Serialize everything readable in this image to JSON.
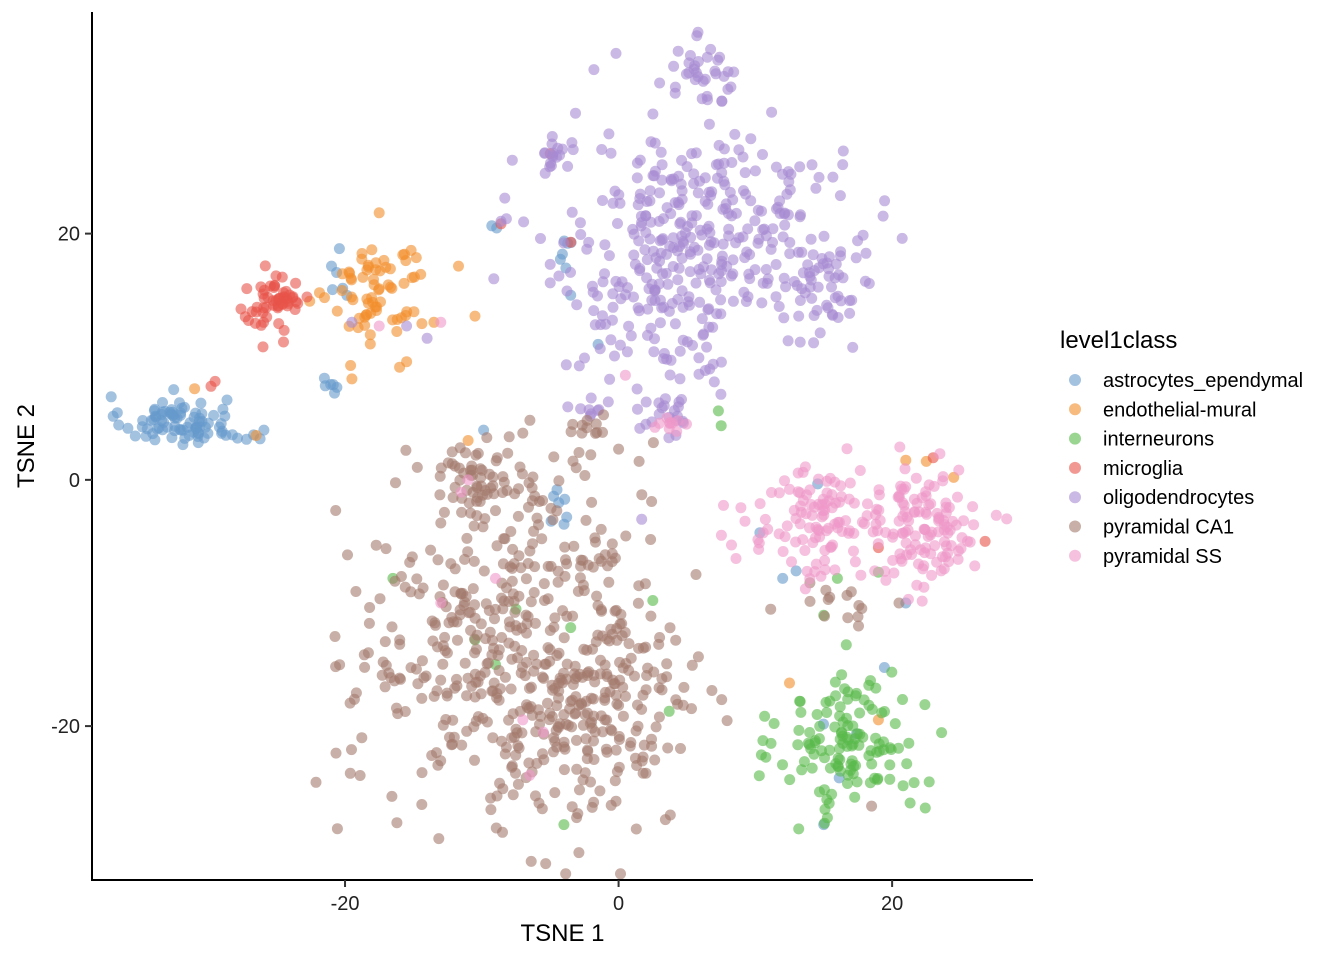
{
  "chart_data": {
    "type": "scatter",
    "xlabel": "TSNE 1",
    "ylabel": "TSNE 2",
    "xlim": [
      -38.5,
      30.3
    ],
    "ylim": [
      -32.5,
      38.0
    ],
    "x_ticks": [
      -20,
      0,
      20
    ],
    "y_ticks": [
      -20,
      0,
      20
    ],
    "grid": false,
    "legend": {
      "title": "level1class",
      "placement": "right"
    },
    "point_opacity": 0.6,
    "series": [
      {
        "name": "astrocytes_ependymal",
        "color": "#6699CC",
        "clusters": [
          {
            "cx": -32.5,
            "cy": 4.8,
            "sx": 1.9,
            "sy": 1.0,
            "n": 80
          },
          {
            "cx": -27.5,
            "cy": 3.6,
            "sx": 1.2,
            "sy": 0.4,
            "n": 8
          },
          {
            "cx": -20.8,
            "cy": 7.6,
            "sx": 0.6,
            "sy": 0.5,
            "n": 6
          },
          {
            "cx": -20.6,
            "cy": 16.8,
            "sx": 0.4,
            "sy": 1.0,
            "n": 6
          },
          {
            "cx": -4.0,
            "cy": 19.3,
            "sx": 0.6,
            "sy": 1.0,
            "n": 6
          },
          {
            "cx": -5.0,
            "cy": -2.2,
            "sx": 1.2,
            "sy": 1.0,
            "n": 6
          },
          {
            "cx": -10.0,
            "cy": 4.0,
            "sx": 0.3,
            "sy": 0.3,
            "n": 1
          },
          {
            "cx": 12.5,
            "cy": -5.0,
            "sx": 1.0,
            "sy": 3.0,
            "n": 3
          },
          {
            "cx": 17.5,
            "cy": -21.5,
            "sx": 2.2,
            "sy": 4.0,
            "n": 4
          },
          {
            "cx": -9.3,
            "cy": 20.6,
            "sx": 0.3,
            "sy": 0.2,
            "n": 2
          }
        ],
        "points": [
          [
            -3.5,
            15.0
          ],
          [
            -1.5,
            11.0
          ],
          [
            -4.5,
            -0.8
          ],
          [
            12.0,
            -8.0
          ],
          [
            21.0,
            -10.0
          ],
          [
            15.0,
            -28.0
          ]
        ]
      },
      {
        "name": "endothelial-mural",
        "color": "#F28E2B",
        "clusters": [
          {
            "cx": -17.5,
            "cy": 15.5,
            "sx": 1.8,
            "sy": 2.4,
            "n": 70
          }
        ],
        "points": [
          [
            -10.5,
            13.3
          ],
          [
            -13.5,
            12.8
          ],
          [
            -21.5,
            14.8
          ],
          [
            -15.5,
            9.6
          ],
          [
            -19.5,
            8.2
          ],
          [
            -31.0,
            7.4
          ],
          [
            -11.0,
            3.2
          ],
          [
            -26.5,
            3.6
          ],
          [
            21.0,
            1.6
          ],
          [
            22.5,
            1.5
          ],
          [
            24.5,
            0.2
          ],
          [
            12.5,
            -16.5
          ],
          [
            19.0,
            -19.5
          ]
        ]
      },
      {
        "name": "interneurons",
        "color": "#59B94A",
        "clusters": [
          {
            "cx": 17.0,
            "cy": -21.5,
            "sx": 2.6,
            "sy": 3.0,
            "n": 130
          }
        ],
        "points": [
          [
            7.5,
            4.4
          ],
          [
            7.3,
            5.6
          ],
          [
            16.0,
            -8.0
          ],
          [
            19.0,
            -7.5
          ],
          [
            2.5,
            -9.8
          ],
          [
            3.7,
            -18.8
          ],
          [
            -16.5,
            -8.0
          ],
          [
            -7.5,
            -10.5
          ],
          [
            -9.0,
            -15.0
          ],
          [
            -4.0,
            -28.0
          ],
          [
            -3.5,
            -12.0
          ],
          [
            -10.5,
            -13.0
          ],
          [
            15.0,
            -11.0
          ]
        ]
      },
      {
        "name": "microglia",
        "color": "#E8534A",
        "clusters": [
          {
            "cx": -25.2,
            "cy": 14.5,
            "sx": 1.3,
            "sy": 1.1,
            "n": 55
          }
        ],
        "points": [
          [
            -26.0,
            10.8
          ],
          [
            -24.5,
            11.2
          ],
          [
            -29.5,
            8.0
          ],
          [
            -29.8,
            7.6
          ],
          [
            -5.0,
            26.5
          ],
          [
            -8.6,
            20.8
          ],
          [
            23.0,
            1.8
          ],
          [
            26.8,
            -5.0
          ],
          [
            19.0,
            -5.5
          ],
          [
            -3.5,
            19.3
          ]
        ]
      },
      {
        "name": "oligodendrocytes",
        "color": "#A78BD2",
        "clusters": [
          {
            "cx": 2.5,
            "cy": 16.5,
            "sx": 4.0,
            "sy": 6.0,
            "n": 190
          },
          {
            "cx": 7.0,
            "cy": 21.0,
            "sx": 3.0,
            "sy": 3.5,
            "n": 140
          },
          {
            "cx": 14.5,
            "cy": 18.5,
            "sx": 2.2,
            "sy": 4.0,
            "n": 90
          },
          {
            "cx": 6.0,
            "cy": 33.0,
            "sx": 1.3,
            "sy": 1.3,
            "n": 35
          },
          {
            "cx": -4.5,
            "cy": 26.3,
            "sx": 0.9,
            "sy": 0.5,
            "n": 14
          },
          {
            "cx": 3.8,
            "cy": 5.3,
            "sx": 1.2,
            "sy": 0.8,
            "n": 15
          },
          {
            "cx": -2.0,
            "cy": 5.5,
            "sx": 0.6,
            "sy": 0.8,
            "n": 6
          }
        ],
        "points": [
          [
            -8.2,
            21.2
          ],
          [
            -8.6,
            21.0
          ],
          [
            -19.5,
            12.8
          ],
          [
            -15.5,
            12.5
          ],
          [
            -14.0,
            11.5
          ],
          [
            -5.0,
            17.5
          ],
          [
            -5.0,
            16.0
          ]
        ]
      },
      {
        "name": "pyramidal CA1",
        "color": "#A37A6C",
        "clusters": [
          {
            "cx": -8.5,
            "cy": -13.5,
            "sx": 5.5,
            "sy": 6.5,
            "n": 360
          },
          {
            "cx": -2.0,
            "cy": -19.5,
            "sx": 3.8,
            "sy": 4.5,
            "n": 180
          },
          {
            "cx": -10.5,
            "cy": 0.3,
            "sx": 1.6,
            "sy": 1.4,
            "n": 50
          },
          {
            "cx": -1.5,
            "cy": -6.0,
            "sx": 1.6,
            "sy": 0.8,
            "n": 18
          },
          {
            "cx": -1.5,
            "cy": 4.0,
            "sx": 1.5,
            "sy": 1.2,
            "n": 14
          },
          {
            "cx": -6.5,
            "cy": -1.5,
            "sx": 1.0,
            "sy": 1.0,
            "n": 10
          },
          {
            "cx": 16.5,
            "cy": -9.8,
            "sx": 1.3,
            "sy": 0.8,
            "n": 14
          }
        ],
        "points": [
          [
            0.0,
            2.5
          ],
          [
            1.5,
            1.5
          ],
          [
            3.0,
            -12.8
          ],
          [
            -16.0,
            -13.0
          ],
          [
            -13.0,
            -3.5
          ],
          [
            -9.0,
            -2.5
          ],
          [
            18.5,
            -26.5
          ],
          [
            20.5,
            -10.0
          ],
          [
            -8.0,
            3.5
          ],
          [
            -7.0,
            3.8
          ]
        ]
      },
      {
        "name": "pyramidal SS",
        "color": "#EE97C8",
        "clusters": [
          {
            "cx": 14.5,
            "cy": -3.5,
            "sx": 2.6,
            "sy": 2.2,
            "n": 110
          },
          {
            "cx": 22.0,
            "cy": -4.0,
            "sx": 2.4,
            "sy": 2.6,
            "n": 120
          },
          {
            "cx": 4.0,
            "cy": 4.5,
            "sx": 1.0,
            "sy": 0.6,
            "n": 10
          }
        ],
        "points": [
          [
            -13.0,
            12.8
          ],
          [
            -17.5,
            12.5
          ],
          [
            0.5,
            8.5
          ],
          [
            -11.0,
            0.0
          ],
          [
            -11.5,
            -1.0
          ],
          [
            -5.5,
            -20.5
          ],
          [
            -7.0,
            -19.5
          ],
          [
            -6.5,
            -24.0
          ],
          [
            -9.0,
            -8.0
          ],
          [
            -13.0,
            -10.0
          ]
        ]
      }
    ]
  }
}
